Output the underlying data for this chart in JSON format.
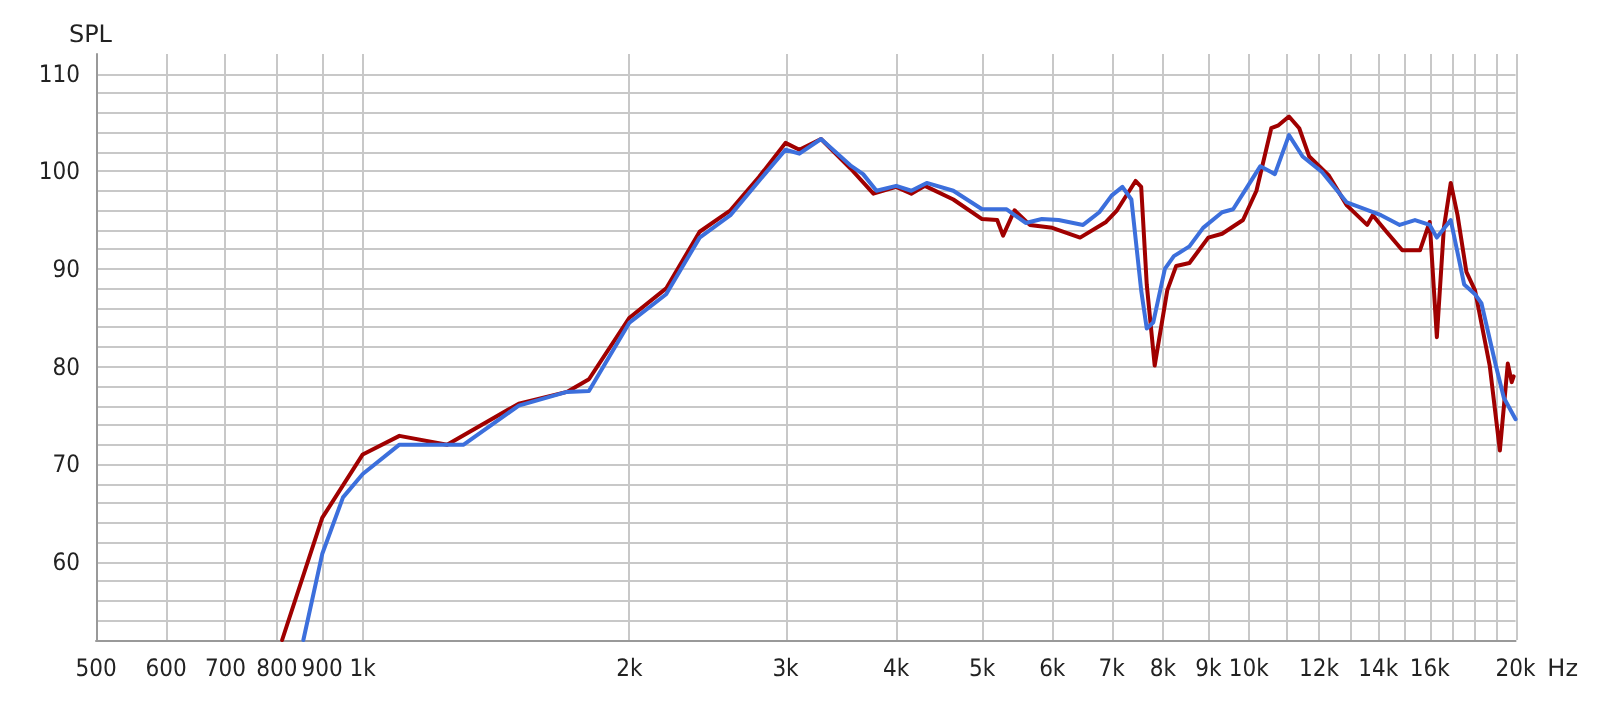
{
  "chart_data": {
    "type": "line",
    "ylabel": "SPL",
    "xlim": [
      500,
      20000
    ],
    "ylim": [
      52,
      112
    ],
    "log": "x",
    "grid": true,
    "xlabel": "Hz",
    "marker": "none",
    "line_style": "solid",
    "xticks": [
      500,
      600,
      700,
      800,
      900,
      {
        "value": 1000,
        "label": "1k"
      },
      {
        "value": 2000,
        "label": "2k"
      },
      {
        "value": 3000,
        "label": "3k"
      },
      {
        "value": 4000,
        "label": "4k"
      },
      {
        "value": 5000,
        "label": "5k"
      },
      {
        "value": 6000,
        "label": "6k"
      },
      {
        "value": 7000,
        "label": "7k"
      },
      {
        "value": 8000,
        "label": "8k"
      },
      {
        "value": 9000,
        "label": "9k"
      },
      {
        "value": 10000,
        "label": "10k"
      },
      {
        "value": 11000,
        "label": null
      },
      {
        "value": 12000,
        "label": "12k"
      },
      {
        "value": 13000,
        "label": null
      },
      {
        "value": 14000,
        "label": "14k"
      },
      {
        "value": 15000,
        "label": null
      },
      {
        "value": 16000,
        "label": "16k"
      },
      {
        "value": 17000,
        "label": null
      },
      {
        "value": 18000,
        "label": null
      },
      {
        "value": 19000,
        "label": null
      },
      {
        "value": 20000,
        "label": "20k"
      }
    ],
    "yticks": [
      {
        "value": 54,
        "label": null
      },
      {
        "value": 56,
        "label": null
      },
      {
        "value": 58,
        "label": null
      },
      60,
      {
        "value": 62,
        "label": null
      },
      {
        "value": 64,
        "label": null
      },
      {
        "value": 66,
        "label": null
      },
      {
        "value": 68,
        "label": null
      },
      70,
      {
        "value": 72,
        "label": null
      },
      {
        "value": 74,
        "label": null
      },
      {
        "value": 76,
        "label": null
      },
      {
        "value": 78,
        "label": null
      },
      80,
      {
        "value": 82,
        "label": null
      },
      {
        "value": 84,
        "label": null
      },
      {
        "value": 86,
        "label": null
      },
      {
        "value": 88,
        "label": null
      },
      90,
      {
        "value": 92,
        "label": null
      },
      {
        "value": 94,
        "label": null
      },
      {
        "value": 96,
        "label": null
      },
      {
        "value": 98,
        "label": null
      },
      100,
      {
        "value": 102,
        "label": null
      },
      {
        "value": 104,
        "label": null
      },
      {
        "value": 106,
        "label": null
      },
      {
        "value": 108,
        "label": null
      },
      110
    ],
    "series": [
      {
        "color": "#a00000",
        "x": [
          811,
          900,
          1000,
          1100,
          1245,
          1500,
          1700,
          1800,
          2000,
          2200,
          2400,
          2600,
          2800,
          3000,
          3110,
          3290,
          3550,
          3770,
          4000,
          4160,
          4310,
          4640,
          5000,
          5200,
          5280,
          5440,
          5660,
          6000,
          6450,
          6900,
          7100,
          7450,
          7560,
          7670,
          7830,
          8090,
          8280,
          8570,
          9000,
          9330,
          9850,
          10200,
          10600,
          10800,
          11100,
          11400,
          11700,
          12300,
          12900,
          13600,
          13800,
          14300,
          14900,
          15600,
          16000,
          16300,
          16600,
          16900,
          17200,
          17600,
          18000,
          18700,
          19200,
          19600,
          19800,
          19900
        ],
        "values": [
          52,
          64.5,
          71,
          72.9,
          72,
          76.2,
          77.4,
          78.7,
          85,
          88,
          93.8,
          96,
          99.4,
          102.9,
          102.2,
          103.3,
          100.3,
          97.7,
          98.4,
          97.7,
          98.5,
          97.1,
          95.1,
          95,
          93.4,
          96,
          94.5,
          94.2,
          93.2,
          94.8,
          96,
          99,
          98.4,
          88.4,
          80.1,
          87.8,
          90.3,
          90.6,
          93.2,
          93.6,
          95,
          98,
          104.4,
          104.7,
          105.6,
          104.4,
          101.5,
          99.6,
          96.5,
          94.5,
          95.5,
          93.8,
          91.9,
          91.9,
          94.8,
          83,
          94.2,
          98.8,
          95.5,
          89.7,
          87.8,
          80.1,
          71.4,
          80.3,
          78.4,
          79
        ]
      },
      {
        "color": "#3c6fdc",
        "x": [
          857,
          900,
          950,
          1000,
          1100,
          1300,
          1500,
          1700,
          1800,
          2000,
          2200,
          2400,
          2600,
          2800,
          3000,
          3110,
          3290,
          3550,
          3670,
          3800,
          4000,
          4160,
          4330,
          4640,
          5000,
          5330,
          5600,
          5840,
          6100,
          6500,
          6780,
          7000,
          7200,
          7370,
          7560,
          7670,
          7800,
          8040,
          8230,
          8570,
          8880,
          9330,
          9600,
          9960,
          10300,
          10700,
          11100,
          11500,
          12100,
          12900,
          14100,
          14800,
          15400,
          16000,
          16300,
          16900,
          17500,
          18000,
          18300,
          19000,
          19400,
          20000
        ],
        "values": [
          52,
          60.8,
          66.6,
          69,
          72,
          72,
          76,
          77.4,
          77.5,
          84.5,
          87.4,
          93.2,
          95.5,
          99,
          102.2,
          101.8,
          103.3,
          100.6,
          99.7,
          98,
          98.5,
          98,
          98.8,
          98,
          96.1,
          96.1,
          94.7,
          95.1,
          95,
          94.5,
          95.8,
          97.5,
          98.4,
          97.1,
          87.8,
          83.9,
          84.5,
          90,
          91.3,
          92.3,
          94.2,
          95.8,
          96.1,
          98.4,
          100.5,
          99.7,
          103.7,
          101.5,
          99.9,
          96.8,
          95.5,
          94.5,
          95,
          94.5,
          93.2,
          95,
          88.4,
          87.4,
          86.5,
          80.1,
          76.8,
          74.6
        ]
      }
    ]
  }
}
